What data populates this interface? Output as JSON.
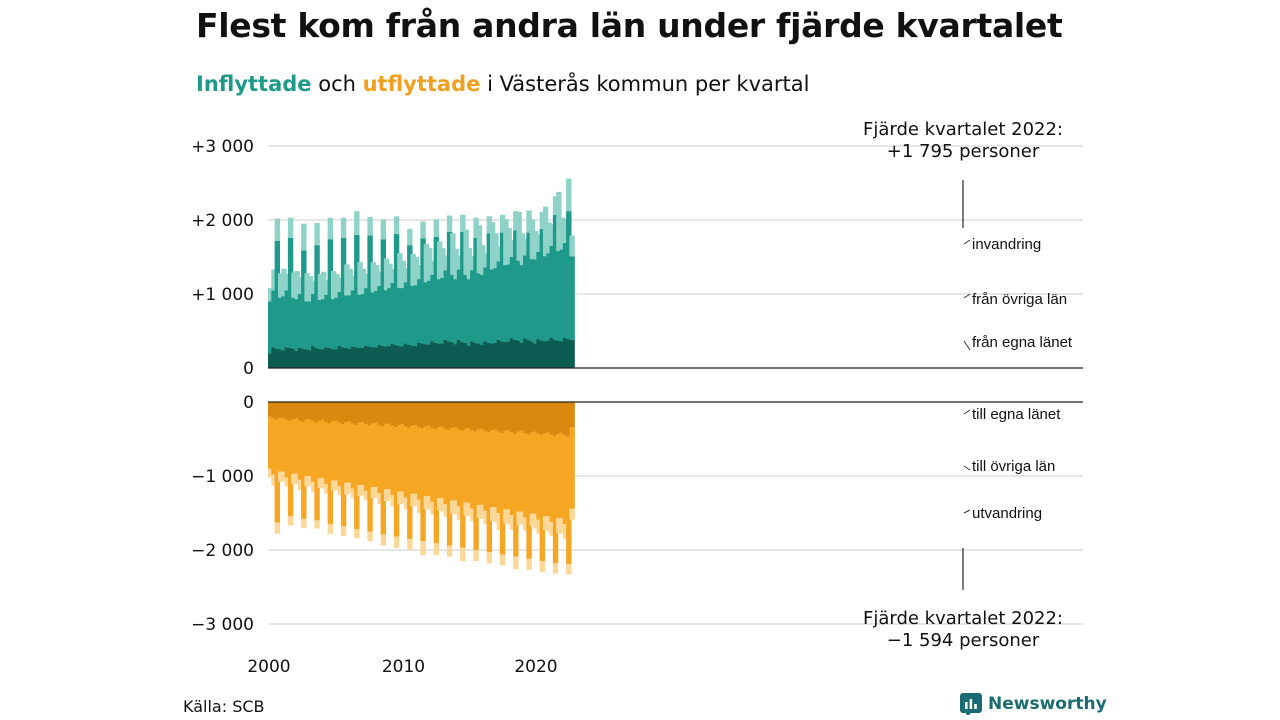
{
  "title": "Flest kom från andra län under fjärde kvartalet",
  "subtitle": {
    "inflow_word": "Inflyttade",
    "connector": " och ",
    "outflow_word": "utflyttade",
    "rest": " i Västerås kommun per kvartal"
  },
  "annotations": {
    "top_line1": "Fjärde kvartalet 2022:",
    "top_line2": "+1 795 personer",
    "bottom_line1": "Fjärde kvartalet 2022:",
    "bottom_line2": "−1 594 personer"
  },
  "source": "Källa: SCB",
  "brand": "Newsworthy",
  "colors": {
    "in_own": "#0d5c52",
    "in_other": "#1f9a8a",
    "in_immig": "#8fd3c8",
    "out_own": "#d98a0e",
    "out_other": "#f5a623",
    "out_emig": "#fbd89a",
    "grid": "#dddddd",
    "brand": "#1a6b72"
  },
  "chart_data": {
    "type": "bar",
    "stacked": true,
    "period": "kvartal 2000 Q1 – 2022 Q4",
    "x_ticks": [
      "2000",
      "2010",
      "2020"
    ],
    "y_ticks_in": [
      {
        "value": 3000,
        "label": "+3 000"
      },
      {
        "value": 2000,
        "label": "+2 000"
      },
      {
        "value": 1000,
        "label": "+1 000"
      },
      {
        "value": 0,
        "label": "0"
      }
    ],
    "y_ticks_out": [
      {
        "value": 0,
        "label": "0"
      },
      {
        "value": -1000,
        "label": "−1 000"
      },
      {
        "value": -2000,
        "label": "−2 000"
      },
      {
        "value": -3000,
        "label": "−3 000"
      }
    ],
    "ylim_in": [
      0,
      3000
    ],
    "ylim_out": [
      -3000,
      0
    ],
    "series_labels": {
      "in_immig": "invandring",
      "in_other": "från övriga län",
      "in_own": "från egna länet",
      "out_own": "till egna länet",
      "out_other": "till övriga län",
      "out_emig": "utvandring"
    },
    "in_own": [
      200,
      280,
      260,
      250,
      240,
      280,
      270,
      260,
      230,
      270,
      260,
      250,
      240,
      300,
      270,
      260,
      250,
      280,
      270,
      250,
      250,
      300,
      280,
      270,
      260,
      290,
      280,
      270,
      270,
      300,
      290,
      280,
      280,
      310,
      300,
      290,
      300,
      330,
      310,
      300,
      290,
      330,
      310,
      300,
      300,
      340,
      330,
      320,
      320,
      360,
      340,
      330,
      330,
      380,
      360,
      350,
      320,
      380,
      350,
      340,
      300,
      360,
      340,
      330,
      310,
      360,
      340,
      330,
      340,
      380,
      360,
      350,
      360,
      400,
      380,
      370,
      340,
      400,
      380,
      360,
      330,
      390,
      370,
      360,
      370,
      410,
      380,
      370,
      360,
      410,
      390,
      380
    ],
    "in_other": [
      700,
      770,
      1460,
      700,
      730,
      770,
      1490,
      690,
      700,
      730,
      1330,
      650,
      660,
      700,
      1390,
      660,
      680,
      710,
      1470,
      680,
      700,
      730,
      1480,
      710,
      720,
      760,
      1520,
      720,
      730,
      780,
      1500,
      740,
      760,
      800,
      1440,
      760,
      780,
      820,
      1500,
      780,
      790,
      830,
      1350,
      810,
      820,
      860,
      1420,
      840,
      860,
      900,
      1430,
      870,
      890,
      940,
      1480,
      910,
      880,
      950,
      1490,
      920,
      900,
      960,
      1420,
      950,
      950,
      1000,
      1480,
      1000,
      1010,
      1060,
      1470,
      1040,
      1040,
      1100,
      1480,
      1080,
      1050,
      1120,
      1450,
      1110,
      1140,
      1180,
      1510,
      1150,
      1180,
      1240,
      1690,
      1210,
      1240,
      1280,
      1730,
      1130
    ],
    "in_immig": [
      180,
      280,
      300,
      330,
      370,
      220,
      270,
      340,
      380,
      230,
      360,
      380,
      340,
      180,
      300,
      350,
      370,
      200,
      290,
      380,
      320,
      190,
      270,
      420,
      360,
      200,
      320,
      440,
      340,
      190,
      250,
      410,
      350,
      190,
      270,
      430,
      330,
      190,
      240,
      470,
      370,
      190,
      220,
      430,
      380,
      190,
      230,
      520,
      440,
      190,
      240,
      510,
      400,
      200,
      220,
      560,
      410,
      190,
      230,
      610,
      420,
      190,
      270,
      650,
      400,
      190,
      230,
      640,
      470,
      200,
      240,
      620,
      490,
      230,
      260,
      660,
      430,
      230,
      300,
      540,
      380,
      230,
      230,
      670,
      420,
      290,
      250,
      800,
      430,
      330,
      440,
      280
    ],
    "out_own": [
      -200,
      -220,
      -240,
      -220,
      -210,
      -240,
      -260,
      -230,
      -220,
      -250,
      -270,
      -240,
      -230,
      -260,
      -280,
      -250,
      -240,
      -270,
      -290,
      -260,
      -250,
      -280,
      -300,
      -270,
      -260,
      -290,
      -310,
      -280,
      -270,
      -300,
      -320,
      -290,
      -280,
      -310,
      -330,
      -300,
      -290,
      -320,
      -340,
      -310,
      -300,
      -330,
      -350,
      -320,
      -310,
      -340,
      -360,
      -330,
      -320,
      -350,
      -370,
      -340,
      -330,
      -360,
      -380,
      -350,
      -340,
      -370,
      -390,
      -360,
      -350,
      -380,
      -400,
      -370,
      -360,
      -390,
      -410,
      -380,
      -370,
      -400,
      -420,
      -390,
      -380,
      -410,
      -430,
      -400,
      -390,
      -420,
      -440,
      -410,
      -400,
      -430,
      -450,
      -420,
      -410,
      -440,
      -460,
      -430,
      -420,
      -450,
      -470,
      -340
    ],
    "out_other": [
      -700,
      -760,
      -1390,
      -720,
      -730,
      -780,
      -1280,
      -740,
      -750,
      -800,
      -1310,
      -760,
      -770,
      -820,
      -1320,
      -780,
      -790,
      -840,
      -1360,
      -800,
      -810,
      -860,
      -1380,
      -820,
      -830,
      -880,
      -1410,
      -840,
      -850,
      -900,
      -1430,
      -860,
      -870,
      -920,
      -1460,
      -880,
      -890,
      -940,
      -1480,
      -900,
      -910,
      -960,
      -1500,
      -920,
      -930,
      -980,
      -1520,
      -940,
      -950,
      -1000,
      -1540,
      -960,
      -970,
      -1020,
      -1560,
      -980,
      -990,
      -1040,
      -1580,
      -1000,
      -1010,
      -1060,
      -1600,
      -1020,
      -1030,
      -1080,
      -1620,
      -1040,
      -1050,
      -1100,
      -1640,
      -1060,
      -1070,
      -1120,
      -1660,
      -1080,
      -1090,
      -1140,
      -1680,
      -1100,
      -1110,
      -1160,
      -1700,
      -1120,
      -1130,
      -1180,
      -1720,
      -1140,
      -1150,
      -1200,
      -1720,
      -1100
    ],
    "out_emig": [
      -120,
      -150,
      -150,
      -140,
      -130,
      -120,
      -130,
      -140,
      -130,
      -140,
      -120,
      -140,
      -130,
      -140,
      -110,
      -130,
      -140,
      -130,
      -130,
      -140,
      -130,
      -120,
      -130,
      -160,
      -140,
      -130,
      -120,
      -150,
      -140,
      -130,
      -130,
      -150,
      -140,
      -150,
      -150,
      -160,
      -150,
      -150,
      -150,
      -170,
      -150,
      -160,
      -150,
      -170,
      -160,
      -180,
      -190,
      -180,
      -170,
      -170,
      -160,
      -170,
      -180,
      -170,
      -150,
      -180,
      -190,
      -190,
      -180,
      -180,
      -170,
      -170,
      -150,
      -180,
      -190,
      -180,
      -150,
      -190,
      -200,
      -230,
      -150,
      -190,
      -200,
      -200,
      -170,
      -180,
      -170,
      -180,
      -150,
      -170,
      -200,
      -190,
      -150,
      -190,
      -210,
      -190,
      -140,
      -200,
      -210,
      -200,
      -140,
      -150
    ]
  }
}
